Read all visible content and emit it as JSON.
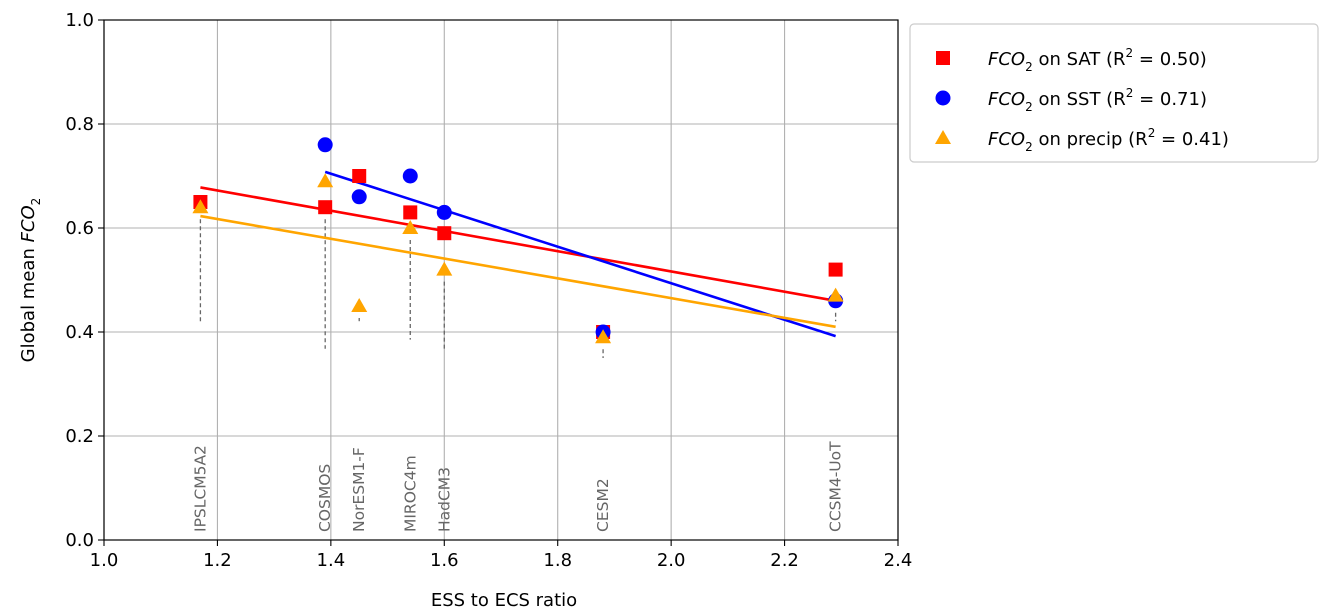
{
  "chart_data": {
    "type": "scatter",
    "xlabel": "ESS to ECS ratio",
    "ylabel": {
      "prefix": "Global mean ",
      "var": "FCO",
      "sub": "2"
    },
    "xlim": [
      1.0,
      2.4
    ],
    "ylim": [
      0.0,
      1.0
    ],
    "xticks": [
      "1.0",
      "1.2",
      "1.4",
      "1.6",
      "1.8",
      "2.0",
      "2.2",
      "2.4"
    ],
    "yticks": [
      "0.0",
      "0.2",
      "0.4",
      "0.6",
      "0.8",
      "1.0"
    ],
    "grid": true,
    "legend_position": "outside top-right",
    "models": [
      {
        "name": "IPSLCM5A2",
        "x": 1.17
      },
      {
        "name": "COSMOS",
        "x": 1.39
      },
      {
        "name": "NorESM1-F",
        "x": 1.45
      },
      {
        "name": "MIROC4m",
        "x": 1.54
      },
      {
        "name": "HadCM3",
        "x": 1.6
      },
      {
        "name": "CESM2",
        "x": 1.88
      },
      {
        "name": "CCSM4-UoT",
        "x": 2.29
      }
    ],
    "series": [
      {
        "var": "FCO",
        "sub": "2",
        "suffix": " on SAT (R",
        "r2": " = 0.50)",
        "marker": "square",
        "color": "#ff0000",
        "points": [
          {
            "x": 1.17,
            "y": 0.65
          },
          {
            "x": 1.39,
            "y": 0.64
          },
          {
            "x": 1.45,
            "y": 0.7
          },
          {
            "x": 1.54,
            "y": 0.63
          },
          {
            "x": 1.6,
            "y": 0.59
          },
          {
            "x": 1.88,
            "y": 0.4
          },
          {
            "x": 2.29,
            "y": 0.52
          }
        ],
        "fit": [
          {
            "x": 1.17,
            "y": 0.678
          },
          {
            "x": 2.29,
            "y": 0.46
          }
        ]
      },
      {
        "var": "FCO",
        "sub": "2",
        "suffix": " on SST (R",
        "r2": " = 0.71)",
        "marker": "circle",
        "color": "#0000ff",
        "points": [
          {
            "x": 1.39,
            "y": 0.76
          },
          {
            "x": 1.45,
            "y": 0.66
          },
          {
            "x": 1.54,
            "y": 0.7
          },
          {
            "x": 1.6,
            "y": 0.63
          },
          {
            "x": 1.88,
            "y": 0.4
          },
          {
            "x": 2.29,
            "y": 0.46
          }
        ],
        "fit": [
          {
            "x": 1.39,
            "y": 0.708
          },
          {
            "x": 2.29,
            "y": 0.392
          }
        ]
      },
      {
        "var": "FCO",
        "sub": "2",
        "suffix": " on precip (R",
        "r2": " = 0.41)",
        "marker": "triangle",
        "color": "#ffa500",
        "points": [
          {
            "x": 1.17,
            "y": 0.64
          },
          {
            "x": 1.39,
            "y": 0.69
          },
          {
            "x": 1.45,
            "y": 0.45
          },
          {
            "x": 1.54,
            "y": 0.6
          },
          {
            "x": 1.6,
            "y": 0.52
          },
          {
            "x": 1.88,
            "y": 0.39
          },
          {
            "x": 2.29,
            "y": 0.47
          }
        ],
        "fit": [
          {
            "x": 1.17,
            "y": 0.623
          },
          {
            "x": 2.29,
            "y": 0.41
          }
        ]
      }
    ]
  }
}
